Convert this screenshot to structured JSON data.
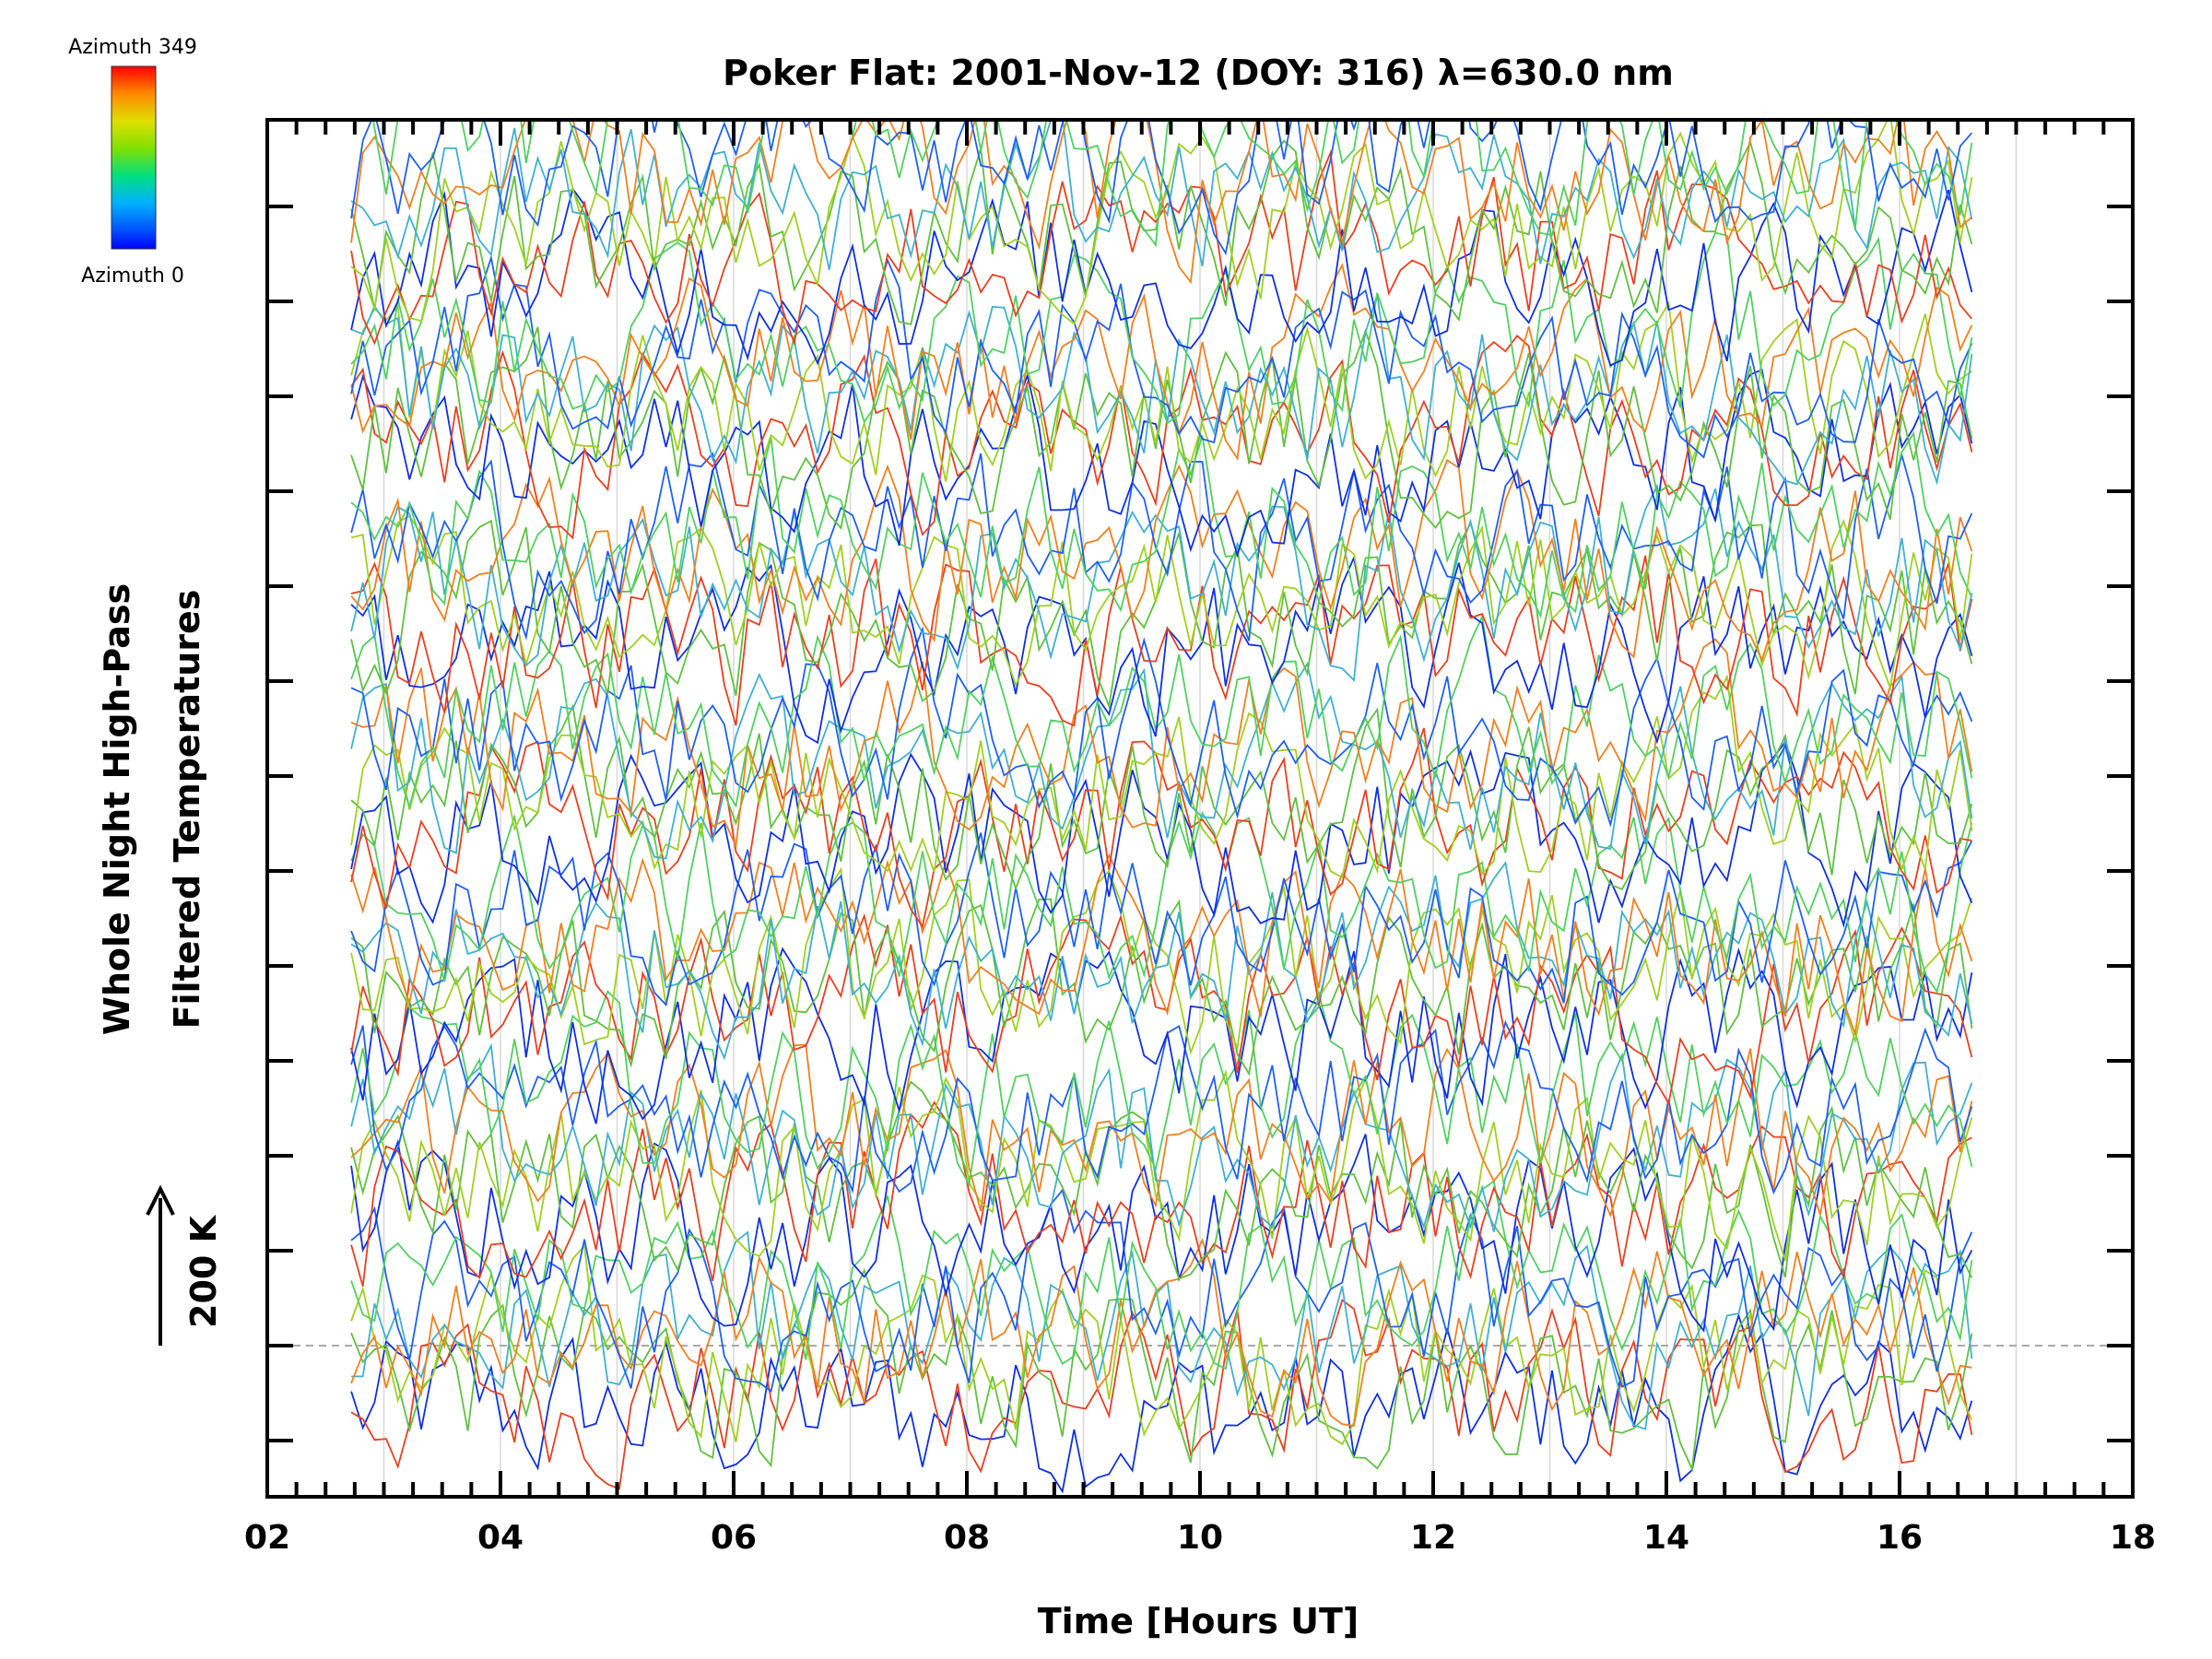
{
  "chart_data": {
    "type": "line",
    "title": "Poker Flat: 2001-Nov-12 (DOY: 316) λ=630.0 nm",
    "xlabel": "Time [Hours UT]",
    "ylabel_line1": "Whole Night High-Pass",
    "ylabel_line2": "Filtered Temperatures",
    "scale_label": "200 K",
    "x_ticks": [
      "02",
      "04",
      "06",
      "08",
      "10",
      "12",
      "14",
      "16",
      "18"
    ],
    "xlim": [
      2,
      18
    ],
    "x_data_range": [
      2.72,
      16.67
    ],
    "sample_interval_hours": 0.1,
    "y_scale_K_per_tick": 50,
    "colorbar": {
      "top_label": "Azimuth 349",
      "bottom_label": "Azimuth 0",
      "colors": [
        "#ff0000",
        "#ff8800",
        "#ffff00",
        "#80ff00",
        "#00ff80",
        "#00c0ff",
        "#0040ff",
        "#0000ff"
      ]
    },
    "series_offsets_K": [
      0,
      100,
      200,
      300,
      400,
      500,
      600
    ],
    "series_groups": [
      {
        "offset_K": 0,
        "azimuth_colors": [
          "#1030e0",
          "#e84020",
          "#60c040",
          "#a0d020",
          "#40b0d0",
          "#f08020",
          "#2060f0",
          "#50d060"
        ]
      },
      {
        "offset_K": 100,
        "azimuth_colors": [
          "#1030e0",
          "#e84020",
          "#60c040",
          "#a0d020",
          "#40b0d0",
          "#f08020",
          "#2060f0",
          "#50d060"
        ]
      },
      {
        "offset_K": 200,
        "azimuth_colors": [
          "#1030e0",
          "#e84020",
          "#60c040",
          "#a0d020",
          "#40b0d0",
          "#f08020",
          "#2060f0",
          "#50d060"
        ]
      },
      {
        "offset_K": 300,
        "azimuth_colors": [
          "#1030e0",
          "#e84020",
          "#60c040",
          "#a0d020",
          "#40b0d0",
          "#f08020",
          "#2060f0",
          "#50d060"
        ]
      },
      {
        "offset_K": 400,
        "azimuth_colors": [
          "#1030e0",
          "#e84020",
          "#60c040",
          "#a0d020",
          "#40b0d0",
          "#f08020",
          "#2060f0",
          "#50d060"
        ]
      },
      {
        "offset_K": 500,
        "azimuth_colors": [
          "#1030e0",
          "#e84020",
          "#60c040",
          "#a0d020",
          "#40b0d0",
          "#f08020",
          "#2060f0",
          "#50d060"
        ]
      },
      {
        "offset_K": 600,
        "azimuth_colors": [
          "#1030e0",
          "#e84020",
          "#60c040",
          "#a0d020",
          "#40b0d0",
          "#f08020",
          "#2060f0",
          "#50d060"
        ]
      }
    ],
    "grid": "vertical-hourly",
    "legend": "colorbar-top-left"
  }
}
